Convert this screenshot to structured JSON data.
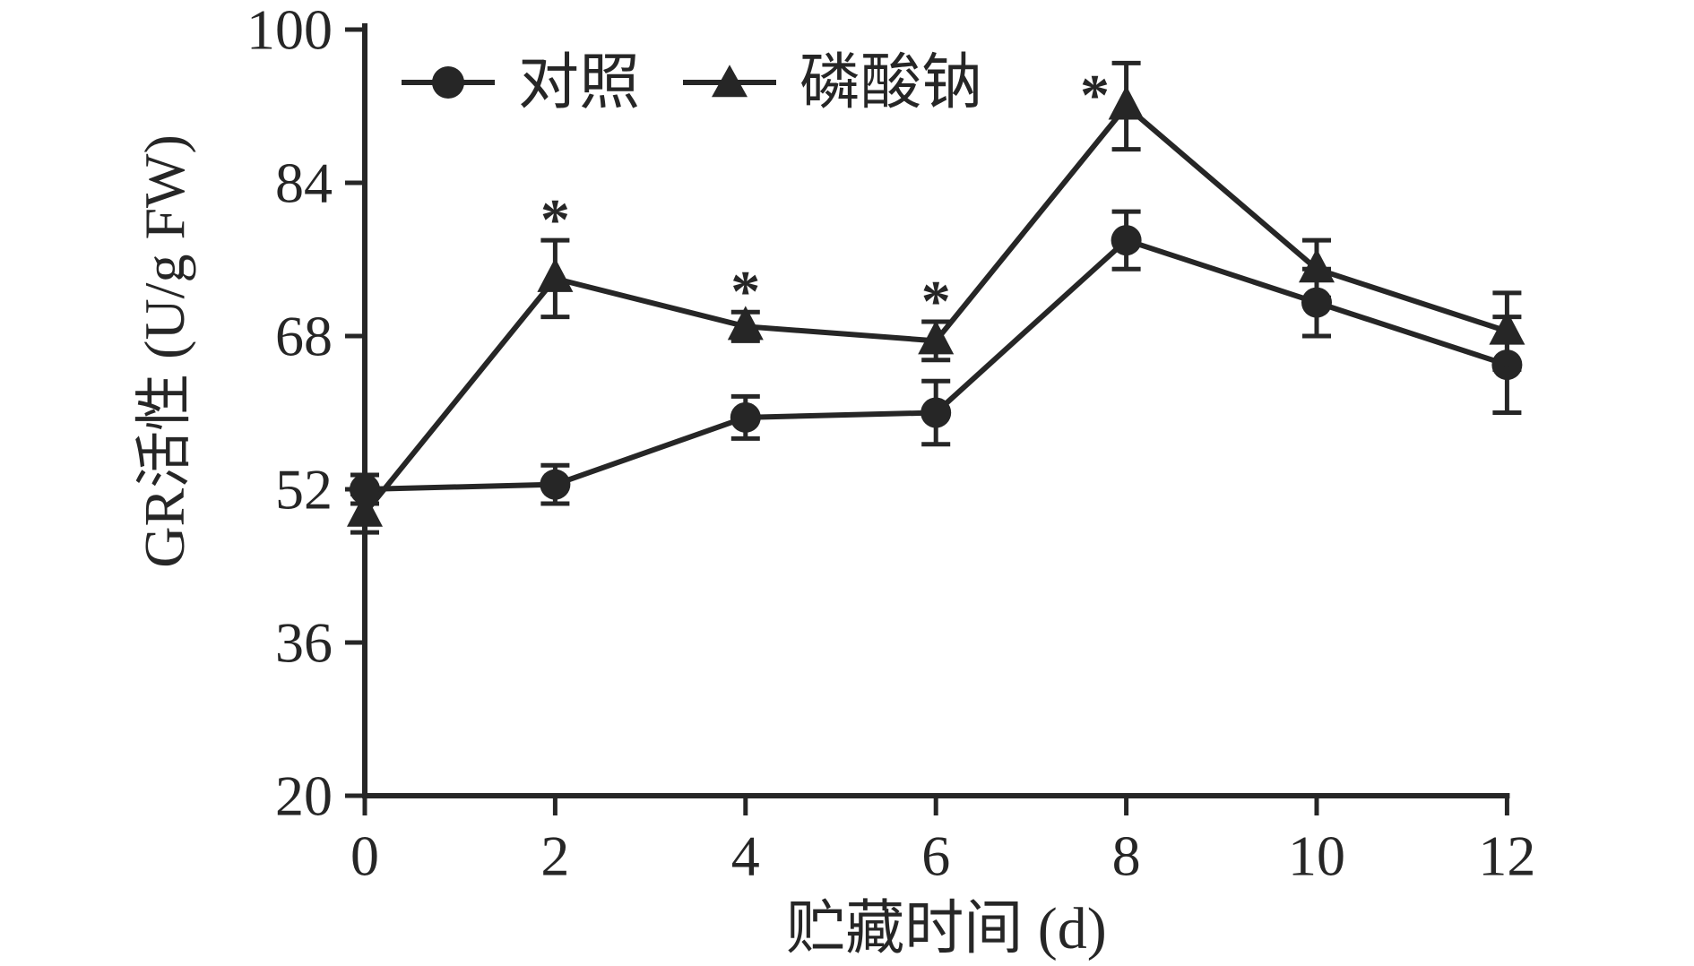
{
  "figure": {
    "background": "#ffffff",
    "ink": "#262626"
  },
  "chart_data": {
    "type": "line",
    "title": "",
    "xlabel": "贮藏时间 (d)",
    "ylabel": "GR活性 (U/g FW)",
    "x": [
      0,
      2,
      4,
      6,
      8,
      10,
      12
    ],
    "xticks": [
      0,
      2,
      4,
      6,
      8,
      10,
      12
    ],
    "yticks": [
      20,
      36,
      52,
      68,
      84,
      100
    ],
    "xlim": [
      0,
      12
    ],
    "ylim": [
      20,
      100
    ],
    "grid": false,
    "legend_position": "top-left inside plot",
    "series": [
      {
        "name": "对照",
        "slug": "control",
        "marker": "circle",
        "values": [
          52,
          52.5,
          59.5,
          60,
          78,
          71.5,
          65
        ],
        "errors": [
          1.5,
          2,
          2.2,
          3.3,
          3,
          3.5,
          5
        ]
      },
      {
        "name": "磷酸钠",
        "slug": "sodium-phosphate",
        "marker": "triangle",
        "values": [
          49.5,
          74,
          69,
          67.5,
          92,
          75,
          68.5
        ],
        "errors": [
          2,
          4,
          1.5,
          2,
          4.5,
          3,
          4
        ]
      }
    ],
    "annotations": [
      {
        "text": "*",
        "x": 2,
        "y": 81
      },
      {
        "text": "*",
        "x": 4,
        "y": 73.5
      },
      {
        "text": "*",
        "x": 6,
        "y": 72.5
      },
      {
        "text": "*",
        "x": 7.67,
        "y": 94
      }
    ]
  }
}
